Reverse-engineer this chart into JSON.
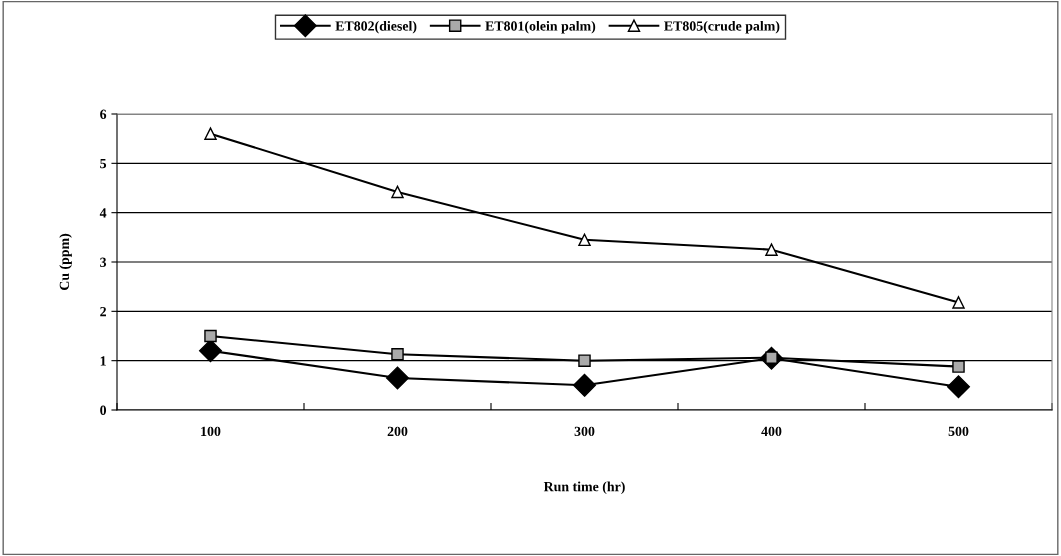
{
  "chart_data": {
    "type": "line",
    "xlabel": "Run time (hr)",
    "ylabel": "Cu (ppm)",
    "categories": [
      "100",
      "200",
      "300",
      "400",
      "500"
    ],
    "series": [
      {
        "name": "ET802(diesel)",
        "color": "#000000",
        "marker": "diamond",
        "values": [
          1.2,
          0.65,
          0.5,
          1.05,
          0.47
        ]
      },
      {
        "name": "ET801(olein palm)",
        "color": "#000000",
        "marker": "square",
        "values": [
          1.5,
          1.13,
          1.0,
          1.06,
          0.88
        ]
      },
      {
        "name": "ET805(crude palm)",
        "color": "#000000",
        "marker": "triangle",
        "values": [
          5.6,
          4.42,
          3.45,
          3.25,
          2.18
        ]
      }
    ],
    "ylim": [
      0,
      6
    ],
    "yticks": [
      0,
      1,
      2,
      3,
      4,
      5,
      6
    ],
    "grid": "y",
    "legend": "top",
    "line_style": "solid"
  }
}
